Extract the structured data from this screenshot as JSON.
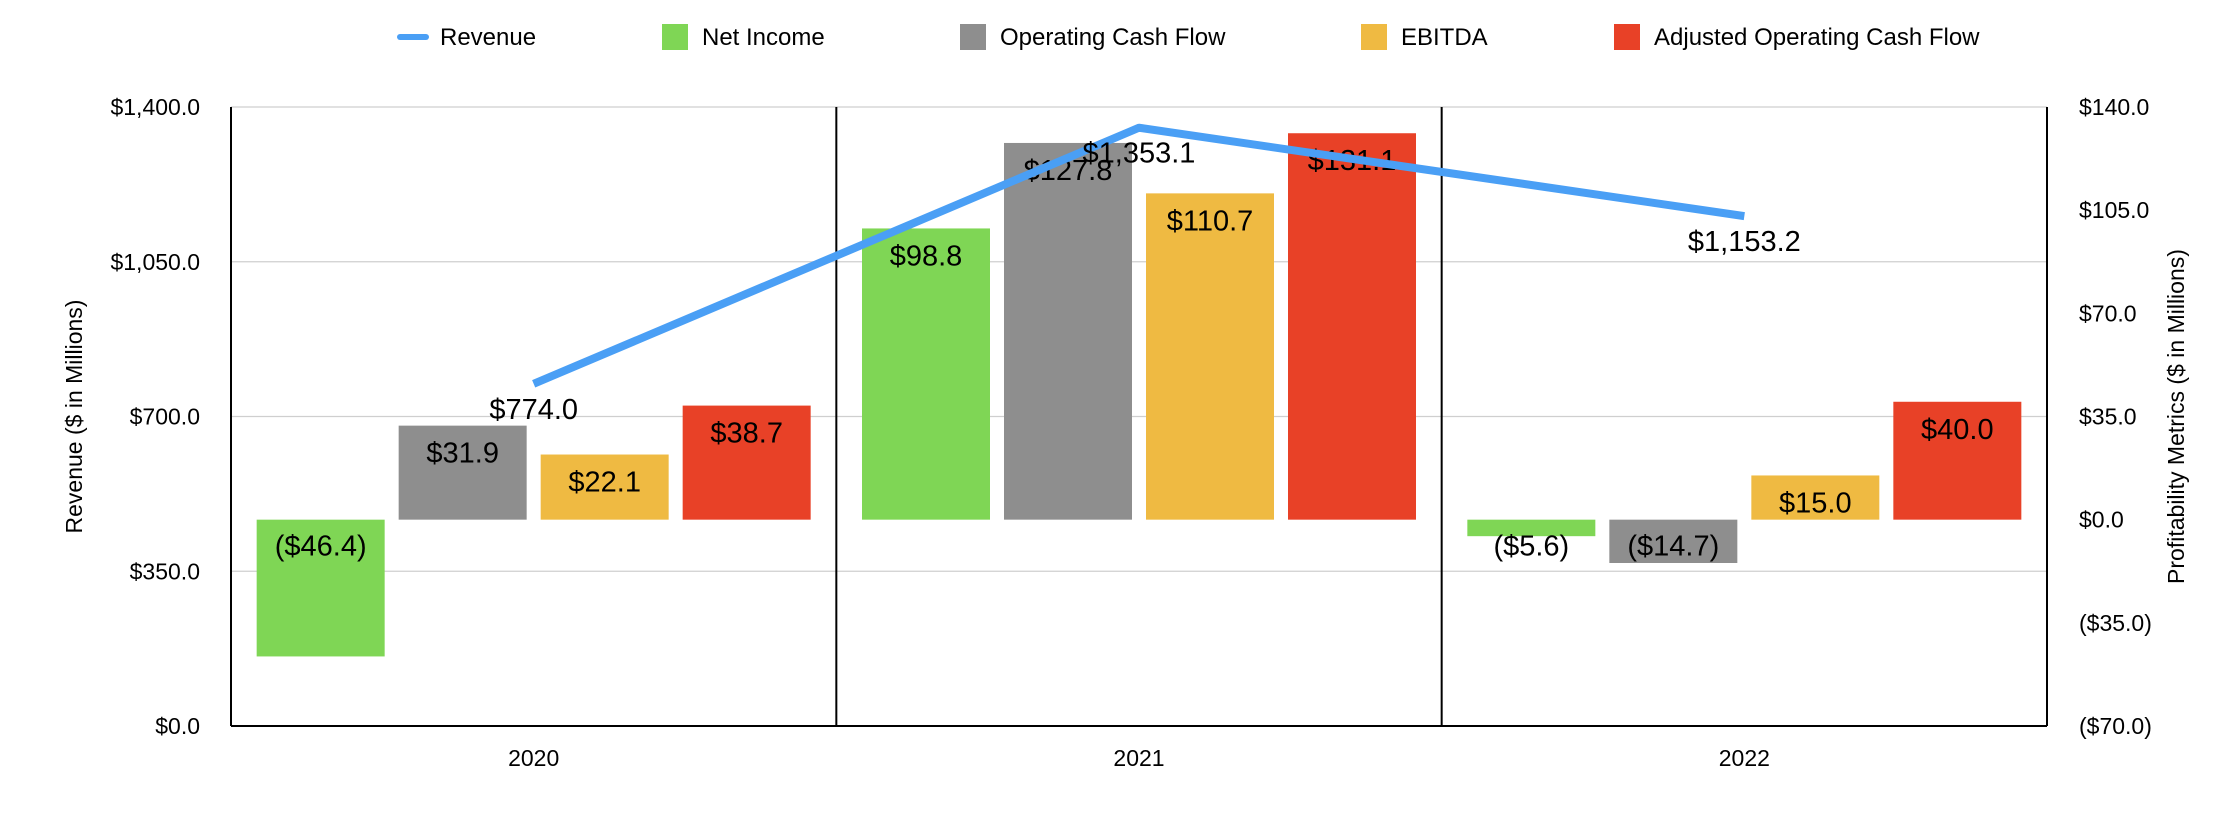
{
  "chart_data": {
    "type": "bar",
    "categories": [
      "2020",
      "2021",
      "2022"
    ],
    "line_series": {
      "name": "Revenue",
      "values": [
        774.0,
        1353.1,
        1153.2
      ],
      "labels": [
        "$774.0",
        "$1,353.1",
        "$1,153.2"
      ],
      "color": "#4a9ff5"
    },
    "series": [
      {
        "name": "Net Income",
        "color": "#7fd655",
        "values": [
          -46.4,
          98.8,
          -5.6
        ],
        "labels": [
          "($46.4)",
          "$98.8",
          "($5.6)"
        ]
      },
      {
        "name": "Operating Cash Flow",
        "color": "#8e8e8e",
        "values": [
          31.9,
          127.8,
          -14.7
        ],
        "labels": [
          "$31.9",
          "$127.8",
          "($14.7)"
        ]
      },
      {
        "name": "EBITDA",
        "color": "#efba42",
        "values": [
          22.1,
          110.7,
          15.0
        ],
        "labels": [
          "$22.1",
          "$110.7",
          "$15.0"
        ]
      },
      {
        "name": "Adjusted Operating Cash Flow",
        "color": "#e84127",
        "values": [
          38.7,
          131.1,
          40.0
        ],
        "labels": [
          "$38.7",
          "$131.1",
          "$40.0"
        ]
      }
    ],
    "ylabel_left": "Revenue ($ in Millions)",
    "ylabel_right": "Profitability Metrics ($ in Millions)",
    "ylim_left": [
      0,
      1400
    ],
    "ylim_right": [
      -70,
      140
    ],
    "yticks_left": [
      "$0.0",
      "$350.0",
      "$700.0",
      "$1,050.0",
      "$1,400.0"
    ],
    "yticks_right": [
      "($70.0)",
      "($35.0)",
      "$0.0",
      "$35.0",
      "$70.0",
      "$105.0",
      "$140.0"
    ],
    "grid": true,
    "legend_position": "top"
  }
}
